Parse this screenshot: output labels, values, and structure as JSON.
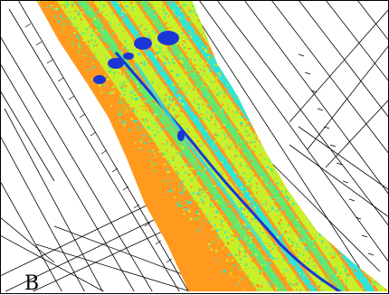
{
  "panel": {
    "label": "B"
  },
  "colors": {
    "low": "#ff9a1f",
    "mid_low": "#c8f02a",
    "mid": "#66e86a",
    "mid_high": "#2ee6d8",
    "high": "#1a36d6",
    "linework": "#000000",
    "background": "#ffffff"
  }
}
